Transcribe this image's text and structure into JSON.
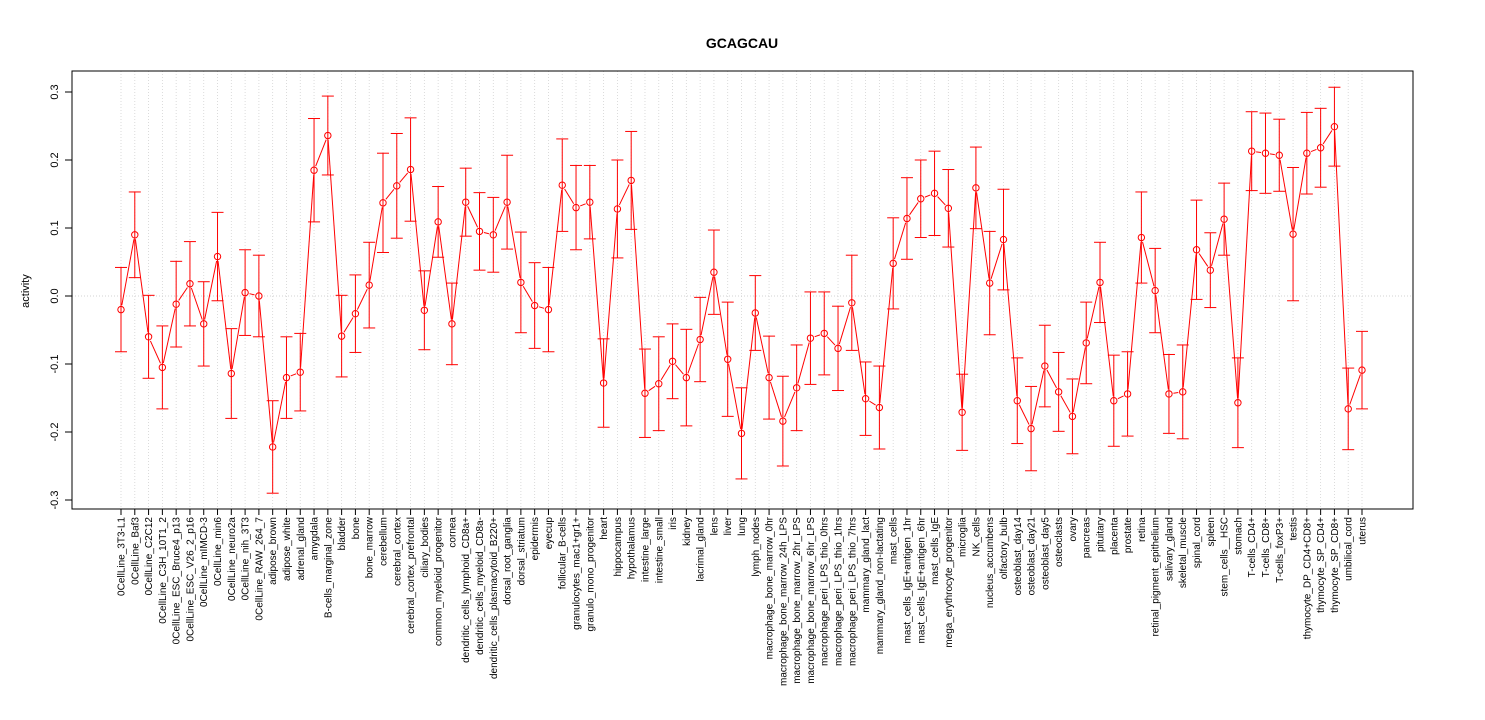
{
  "chart_data": {
    "type": "line",
    "title": "GCAGCAU",
    "xlabel": "",
    "ylabel": "activity",
    "ylim": [
      -0.31,
      0.33
    ],
    "yticks": [
      "-0.3",
      "-0.2",
      "-0.1",
      "0.0",
      "0.1",
      "0.2",
      "0.3"
    ],
    "grid": true,
    "series_color": "#ff0000",
    "categories": [
      "0CellLine_3T3-L1",
      "0CellLine_Baf3",
      "0CellLine_C2C12",
      "0CellLine_C3H_10T1_2",
      "0CellLine_ESC_Bruce4_p13",
      "0CellLine_ESC_V26_2_p16",
      "0CellLine_mIMCD-3",
      "0CellLine_min6",
      "0CellLine_neuro2a",
      "0CellLine_nih_3T3",
      "0CellLine_RAW_264_7",
      "adipose_brown",
      "adipose_white",
      "adrenal_gland",
      "amygdala",
      "B-cells_marginal_zone",
      "bladder",
      "bone",
      "bone_marrow",
      "cerebellum",
      "cerebral_cortex",
      "cerebral_cortex_prefrontal",
      "ciliary_bodies",
      "common_myeloid_progenitor",
      "cornea",
      "dendritic_cells_lymphoid_CD8a+",
      "dendritic_cells_myeloid_CD8a-",
      "dendritic_cells_plasmacytoid_B220+",
      "dorsal_root_ganglia",
      "dorsal_striatum",
      "epidermis",
      "eyecup",
      "follicular_B-cells",
      "granulocytes_mac1+gr1+",
      "granulo_mono_progenitor",
      "heart",
      "hippocampus",
      "hypothalamus",
      "intestine_large",
      "intestine_small",
      "iris",
      "kidney",
      "lacrimal_gland",
      "lens",
      "liver",
      "lung",
      "lymph_nodes",
      "macrophage_bone_marrow_0hr",
      "macrophage_bone_marrow_24h_LPS",
      "macrophage_bone_marrow_2hr_LPS",
      "macrophage_bone_marrow_6hr_LPS",
      "macrophage_peri_LPS_thio_0hrs",
      "macrophage_peri_LPS_thio_1hrs",
      "macrophage_peri_LPS_thio_7hrs",
      "mammary_gland_lact",
      "mammary_gland_non-lactating",
      "mast_cells",
      "mast_cells_IgE+antigen_1hr",
      "mast_cells_IgE+antigen_6hr",
      "mast_cells_IgE",
      "mega_erythrocyte_progenitor",
      "microglia",
      "NK_cells",
      "nucleus_accumbens",
      "olfactory_bulb",
      "osteoblast_day14",
      "osteoblast_day21",
      "osteoblast_day5",
      "osteoclasts",
      "ovary",
      "pancreas",
      "pituitary",
      "placenta",
      "prostate",
      "retina",
      "retinal_pigment_epithelium",
      "salivary_gland",
      "skeletal_muscle",
      "spinal_cord",
      "spleen",
      "stem_cells__HSC",
      "stomach",
      "T-cells_CD4+",
      "T-cells_CD8+",
      "T-cells_foxP3+",
      "testis",
      "thymocyte_DP_CD4+CD8+",
      "thymocyte_SP_CD4+",
      "thymocyte_SP_CD8+",
      "umbilical_cord",
      "uterus"
    ],
    "values": [
      -0.02,
      0.09,
      -0.06,
      -0.105,
      -0.012,
      0.018,
      -0.041,
      0.058,
      -0.114,
      0.005,
      0.0,
      -0.222,
      -0.12,
      -0.112,
      0.185,
      0.236,
      -0.059,
      -0.026,
      0.016,
      0.137,
      0.162,
      0.186,
      -0.021,
      0.109,
      -0.041,
      0.138,
      0.095,
      0.09,
      0.138,
      0.02,
      -0.014,
      -0.02,
      0.163,
      0.13,
      0.138,
      -0.128,
      0.128,
      0.17,
      -0.143,
      -0.129,
      -0.096,
      -0.12,
      -0.064,
      0.035,
      -0.093,
      -0.202,
      -0.025,
      -0.12,
      -0.184,
      -0.135,
      -0.062,
      -0.055,
      -0.077,
      -0.01,
      -0.151,
      -0.164,
      0.048,
      0.114,
      0.143,
      0.151,
      0.129,
      -0.171,
      0.159,
      0.019,
      0.083,
      -0.154,
      -0.195,
      -0.103,
      -0.141,
      -0.177,
      -0.069,
      0.02,
      -0.154,
      -0.144,
      0.086,
      0.008,
      -0.144,
      -0.141,
      0.068,
      0.038,
      0.113,
      -0.157,
      0.213,
      0.21,
      0.207,
      0.091,
      0.21,
      0.218,
      0.249,
      -0.166,
      -0.109
    ],
    "error": [
      0.062,
      0.063,
      0.061,
      0.061,
      0.063,
      0.062,
      0.062,
      0.065,
      0.066,
      0.063,
      0.06,
      0.068,
      0.06,
      0.057,
      0.076,
      0.058,
      0.06,
      0.057,
      0.063,
      0.073,
      0.077,
      0.076,
      0.058,
      0.052,
      0.06,
      0.05,
      0.057,
      0.055,
      0.069,
      0.074,
      0.063,
      0.062,
      0.068,
      0.062,
      0.054,
      0.065,
      0.072,
      0.072,
      0.065,
      0.069,
      0.055,
      0.071,
      0.062,
      0.062,
      0.084,
      0.067,
      0.055,
      0.061,
      0.066,
      0.063,
      0.068,
      0.061,
      0.062,
      0.07,
      0.054,
      0.061,
      0.067,
      0.06,
      0.057,
      0.062,
      0.057,
      0.056,
      0.06,
      0.076,
      0.074,
      0.063,
      0.062,
      0.06,
      0.058,
      0.055,
      0.06,
      0.059,
      0.067,
      0.062,
      0.067,
      0.062,
      0.058,
      0.069,
      0.073,
      0.055,
      0.053,
      0.066,
      0.058,
      0.059,
      0.053,
      0.098,
      0.06,
      0.058,
      0.058,
      0.06,
      0.057
    ]
  }
}
